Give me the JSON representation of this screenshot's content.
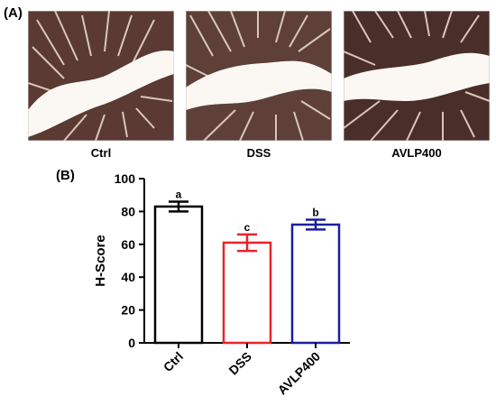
{
  "panel_a": {
    "label": "(A)",
    "images": [
      {
        "caption": "Ctrl",
        "stain_color": "#5a3a33",
        "lumen_color": "#fbf8f4"
      },
      {
        "caption": "DSS",
        "stain_color": "#5e4039",
        "lumen_color": "#fbf8f4"
      },
      {
        "caption": "AVLP400",
        "stain_color": "#4a2e2a",
        "lumen_color": "#fbf8f4"
      }
    ]
  },
  "panel_b": {
    "label": "(B)"
  },
  "chart_data": {
    "type": "bar",
    "title": "",
    "xlabel": "",
    "ylabel": "H-Score",
    "categories": [
      "Ctrl",
      "DSS",
      "AVLP400"
    ],
    "values": [
      83,
      61,
      72
    ],
    "errors": [
      3,
      5,
      3
    ],
    "significance": [
      "a",
      "c",
      "b"
    ],
    "colors": [
      "#000000",
      "#e8242a",
      "#1b1f9c"
    ],
    "ylim": [
      0,
      100
    ],
    "yticks": [
      0,
      20,
      40,
      60,
      80,
      100
    ],
    "grid": false
  }
}
